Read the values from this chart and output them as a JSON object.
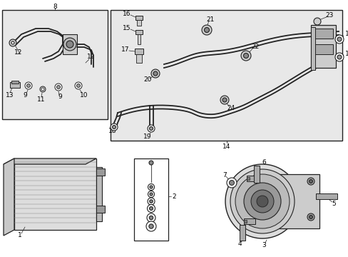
{
  "bg_color": "#ffffff",
  "box_bg": "#e8e8e8",
  "line_color": "#222222",
  "figsize": [
    4.89,
    3.6
  ],
  "dpi": 100
}
